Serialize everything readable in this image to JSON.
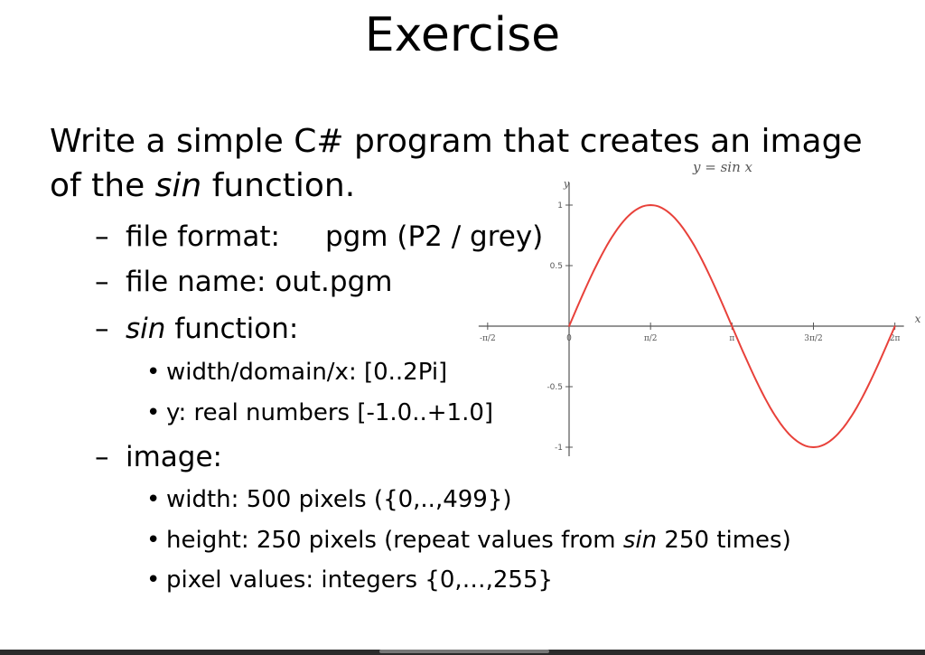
{
  "slide": {
    "title": "Exercise",
    "intro": {
      "pre": "Write a simple C# program that creates an image",
      "line2_pre": "of the ",
      "line2_em": "sin",
      "line2_post": " function."
    },
    "items": {
      "file_format_label": "file format:",
      "file_format_value": "pgm (P2 / grey)",
      "file_name": "file name: out.pgm",
      "sin_em": "sin",
      "sin_post": " function:",
      "width_domain": "width/domain/x:  [0..2Pi]",
      "y_range": "y:  real numbers [-1.0..+1.0]",
      "image_label": "image:",
      "width": "width:  500 pixels ({0,..,499})",
      "height_pre": "height:  250 pixels (repeat values from ",
      "height_em": "sin",
      "height_post": " 250 times)",
      "pixel_values": "pixel values:  integers {0,…,255}"
    },
    "dash": "–",
    "bullet": "•"
  },
  "chart_data": {
    "type": "line",
    "title": "y = sin x",
    "xlabel": "x",
    "ylabel": "y",
    "xlim": [
      -1.5708,
      6.2832
    ],
    "ylim": [
      -1,
      1
    ],
    "x_ticks": [
      "-π/2",
      "0",
      "π/2",
      "π",
      "3π/2",
      "2π"
    ],
    "y_ticks": [
      "1",
      "0.5",
      "-0.5",
      "-1"
    ],
    "series": [
      {
        "color": "#e8413a",
        "x": [
          0,
          0.3927,
          0.7854,
          1.1781,
          1.5708,
          1.9635,
          2.3562,
          2.7489,
          3.1416,
          3.5343,
          3.927,
          4.3197,
          4.7124,
          5.1051,
          5.4978,
          5.8905,
          6.2832
        ],
        "y": [
          0,
          0.383,
          0.707,
          0.924,
          1,
          0.924,
          0.707,
          0.383,
          0,
          -0.383,
          -0.707,
          -0.924,
          -1,
          -0.924,
          -0.707,
          -0.383,
          0
        ]
      }
    ]
  }
}
